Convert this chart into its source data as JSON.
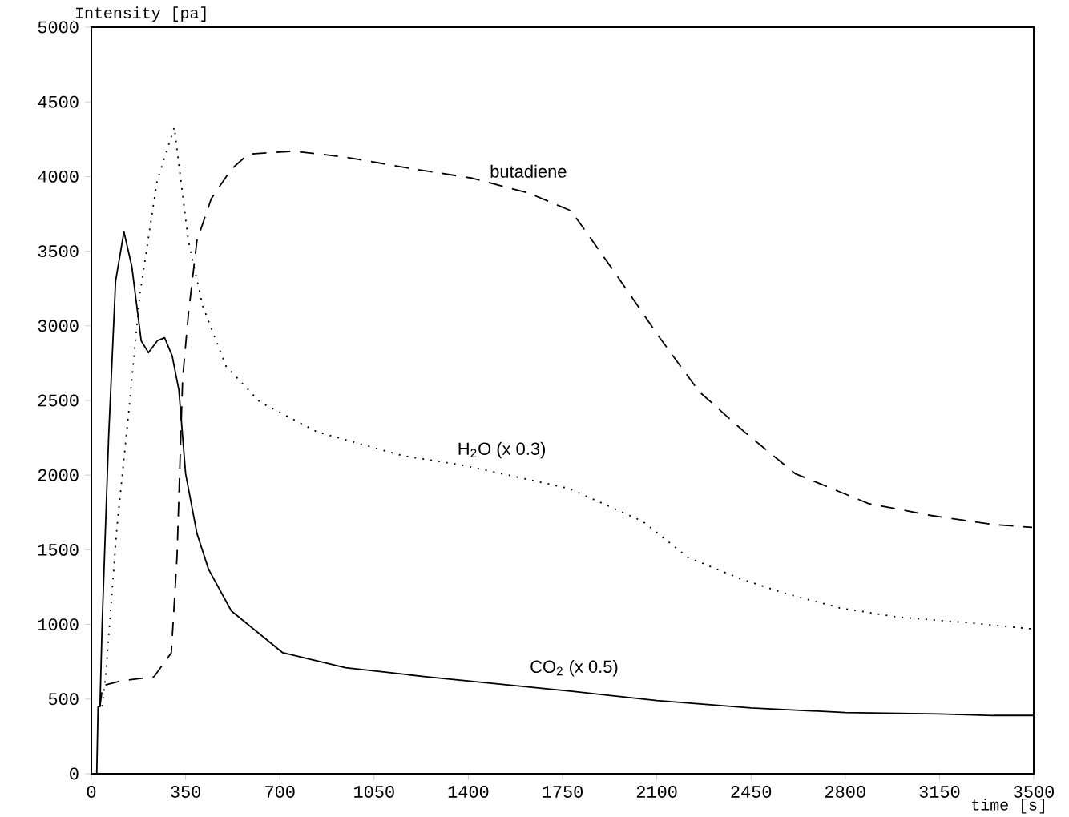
{
  "chart_data": {
    "type": "line",
    "xlabel": "time [s]",
    "ylabel": "Intensity [pa]",
    "xlim": [
      0,
      3500
    ],
    "xticks": [
      0,
      350,
      700,
      1050,
      1400,
      1750,
      2100,
      2450,
      2800,
      3150,
      3500
    ],
    "ylim": [
      0,
      5000
    ],
    "yticks": [
      0,
      500,
      1000,
      1500,
      2000,
      2500,
      3000,
      3500,
      4000,
      4500,
      5000
    ],
    "grid": false,
    "legend": false,
    "series": [
      {
        "name": "CO$_{2}$ (x 0.5)",
        "color": "#000000",
        "line_style": "solid",
        "x": [
          0,
          20,
          25,
          32,
          40,
          64,
          90,
          121,
          150,
          185,
          212,
          245,
          272,
          300,
          325,
          350,
          392,
          435,
          520,
          711,
          944,
          1241,
          1793,
          2100,
          2450,
          2800,
          3150,
          3350,
          3500
        ],
        "values": [
          0,
          0,
          450,
          450,
          1000,
          2250,
          3300,
          3630,
          3400,
          2900,
          2820,
          2900,
          2920,
          2800,
          2570,
          2010,
          1610,
          1370,
          1090,
          810,
          710,
          650,
          550,
          490,
          440,
          410,
          400,
          390,
          390
        ]
      },
      {
        "name": "H$_{2}$O (x 0.3)",
        "color": "#000000",
        "line_style": "dotted",
        "x": [
          40,
          53,
          95,
          138,
          180,
          244,
          308,
          360,
          414,
          500,
          626,
          838,
          1156,
          1368,
          1524,
          1775,
          2048,
          2215,
          2404,
          2572,
          2781,
          2991,
          3264,
          3494
        ],
        "values": [
          450,
          650,
          1650,
          2410,
          3210,
          3970,
          4330,
          3570,
          3130,
          2730,
          2490,
          2290,
          2130,
          2070,
          2010,
          1910,
          1690,
          1450,
          1310,
          1210,
          1110,
          1050,
          1010,
          970
        ]
      },
      {
        "name": "butadiene",
        "color": "#000000",
        "line_style": "dashed",
        "x": [
          32,
          42,
          106,
          233,
          297,
          318,
          339,
          361,
          392,
          445,
          520,
          583,
          753,
          944,
          1199,
          1411,
          1623,
          1782,
          1943,
          2111,
          2257,
          2425,
          2614,
          2886,
          3117,
          3348,
          3494
        ],
        "values": [
          450,
          590,
          620,
          650,
          810,
          1450,
          2650,
          3090,
          3570,
          3850,
          4050,
          4150,
          4170,
          4130,
          4050,
          3990,
          3890,
          3770,
          3360,
          2920,
          2560,
          2290,
          2010,
          1810,
          1730,
          1670,
          1650
        ]
      }
    ]
  }
}
